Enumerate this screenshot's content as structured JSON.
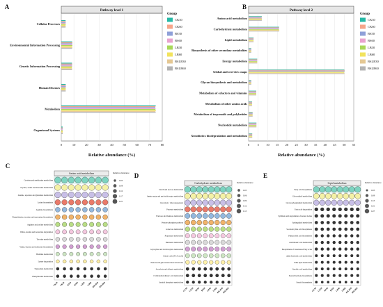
{
  "colors": {
    "CK30": "#26b9a6",
    "CK60": "#f6a58a",
    "BS30": "#8fa0d8",
    "BS60": "#e9a3cf",
    "LB30": "#a9d85a",
    "LB60": "#f2e35d",
    "BSLB30": "#e5c894",
    "BSLB60": "#b3b3b3"
  },
  "groups": [
    "CK30",
    "CK60",
    "BS30",
    "BS60",
    "LB30",
    "LB60",
    "BSLB30",
    "BSLB60"
  ],
  "legend_title": "Group",
  "chart_data": [
    {
      "type": "bar",
      "orientation": "horizontal",
      "panel": "A",
      "title": "Pathway level 1",
      "xlabel": "Relative abundance (%)",
      "xlim": [
        0,
        80
      ],
      "xticks": [
        0,
        10,
        20,
        30,
        40,
        50,
        60,
        70,
        80
      ],
      "categories": [
        "Cellular Processes",
        "Environmental Information Processing",
        "Genetic Information Processing",
        "Human Diseases",
        "Metabolism",
        "Organismal Systems"
      ],
      "series": [
        {
          "name": "CK30",
          "values": [
            3.4,
            8.6,
            8.5,
            3.5,
            74.8,
            1.1
          ]
        },
        {
          "name": "CK60",
          "values": [
            3.5,
            8.8,
            8.6,
            3.5,
            74.6,
            1.1
          ]
        },
        {
          "name": "BS30",
          "values": [
            3.5,
            8.7,
            8.6,
            3.6,
            74.5,
            1.1
          ]
        },
        {
          "name": "BS60",
          "values": [
            3.4,
            8.7,
            8.5,
            3.5,
            74.7,
            1.1
          ]
        },
        {
          "name": "LB30",
          "values": [
            3.5,
            8.8,
            8.6,
            3.5,
            74.6,
            1.1
          ]
        },
        {
          "name": "LB60",
          "values": [
            3.4,
            8.6,
            8.4,
            3.5,
            75.0,
            1.1
          ]
        },
        {
          "name": "BSLB30",
          "values": [
            3.5,
            8.7,
            8.6,
            3.5,
            74.6,
            1.1
          ]
        },
        {
          "name": "BSLB60",
          "values": [
            3.4,
            8.6,
            8.5,
            3.5,
            74.8,
            1.1
          ]
        }
      ]
    },
    {
      "type": "bar",
      "orientation": "horizontal",
      "panel": "B",
      "title": "Pathway level 2",
      "xlabel": "Relative abundance (%)",
      "xlim": [
        0,
        55
      ],
      "xticks": [
        0,
        5,
        10,
        15,
        20,
        25,
        30,
        35,
        40,
        45,
        50,
        55
      ],
      "categories": [
        "Amino acid metabolism",
        "Carbohydrate metabolism",
        "Lipid metabolism",
        "Biosynthesis of other secondary metabolites",
        "Energy metabolism",
        "Global and overview maps",
        "Glycan biosynthesis and metabolism",
        "Metabolism of cofactors and vitamins",
        "Metabolism of other amino acids",
        "Metabolism of terpenoids and polyketides",
        "Nucleotide metabolism",
        "Xenobiotics biodegradation and metabolism"
      ],
      "series": [
        {
          "name": "CK30",
          "values": [
            6.9,
            16.0,
            2.6,
            1.4,
            4.5,
            50.1,
            1.4,
            4.0,
            1.8,
            2.1,
            4.1,
            1.9
          ]
        },
        {
          "name": "CK60",
          "values": [
            6.9,
            15.9,
            2.6,
            1.4,
            4.5,
            50.2,
            1.4,
            4.0,
            1.8,
            2.1,
            4.1,
            1.9
          ]
        },
        {
          "name": "BS30",
          "values": [
            6.8,
            15.8,
            2.6,
            1.4,
            4.5,
            50.3,
            1.4,
            4.0,
            1.8,
            2.1,
            4.1,
            1.9
          ]
        },
        {
          "name": "BS60",
          "values": [
            6.9,
            16.0,
            2.6,
            1.4,
            4.5,
            50.1,
            1.4,
            4.0,
            1.8,
            2.1,
            4.1,
            1.9
          ]
        },
        {
          "name": "LB30",
          "values": [
            6.9,
            15.9,
            2.6,
            1.4,
            4.5,
            50.2,
            1.4,
            4.0,
            1.8,
            2.1,
            4.1,
            1.9
          ]
        },
        {
          "name": "LB60",
          "values": [
            7.0,
            16.1,
            2.6,
            1.4,
            4.5,
            50.0,
            1.4,
            4.0,
            1.8,
            2.1,
            4.1,
            1.9
          ]
        },
        {
          "name": "BSLB30",
          "values": [
            6.9,
            15.9,
            2.6,
            1.4,
            4.5,
            50.2,
            1.4,
            4.0,
            1.8,
            2.1,
            4.1,
            1.9
          ]
        },
        {
          "name": "BSLB60",
          "values": [
            6.9,
            16.0,
            2.6,
            1.4,
            4.5,
            50.1,
            1.4,
            4.0,
            1.8,
            2.1,
            4.1,
            1.9
          ]
        }
      ]
    },
    {
      "type": "bubble",
      "panel": "C",
      "title": "Amino acid metabolism",
      "size_legend_title": "Relative abundance",
      "size_legend": [
        "0.03",
        "0.08",
        "0.12",
        "0.17",
        "0.21"
      ],
      "x": [
        "CK30",
        "CK60",
        "BS30",
        "BS60",
        "LB30",
        "LB60",
        "BSLB30",
        "BSLB60"
      ],
      "rows": [
        {
          "name": "Cysteine and methionine metabolism",
          "value": 0.21,
          "fill": "#7dd3c0",
          "highlight": true
        },
        {
          "name": "Glycine, serine and threonine metabolism",
          "value": 0.19,
          "fill": "#f4f1a6"
        },
        {
          "name": "Alanine, aspartate and glutamate metabolism",
          "value": 0.19,
          "fill": "#c8bfe7"
        },
        {
          "name": "Lysine biosynthesis",
          "value": 0.15,
          "fill": "#e97a6a"
        },
        {
          "name": "Arginine biosynthesis",
          "value": 0.11,
          "fill": "#93b8de"
        },
        {
          "name": "Phenylalanine, tyrosine and tryptophan biosynthesis",
          "value": 0.11,
          "fill": "#f0b36a"
        },
        {
          "name": "Arginine and proline metabolism",
          "value": 0.09,
          "fill": "#b9de85"
        },
        {
          "name": "Valine, leucine and isoleucine degradation",
          "value": 0.08,
          "fill": "#f5c9e0"
        },
        {
          "name": "Tyrosine metabolism",
          "value": 0.07,
          "fill": "#d9d9d9"
        },
        {
          "name": "Valine, leucine and isoleucine biosynthesis",
          "value": 0.06,
          "fill": "#d19fd1"
        },
        {
          "name": "Histidine metabolism",
          "value": 0.05,
          "fill": "#cde6c3"
        },
        {
          "name": "Lysine degradation",
          "value": 0.04,
          "fill": "#fff0a8"
        },
        {
          "name": "Tryptophan metabolism",
          "value": 0.03,
          "fill": "#333333"
        },
        {
          "name": "Phenylalanine metabolism",
          "value": 0.03,
          "fill": "#333333"
        }
      ]
    },
    {
      "type": "bubble",
      "panel": "D",
      "title": "Carbohydrate metabolism",
      "size_legend_title": "Relative abundance",
      "size_legend": [
        "0.03",
        "0.06",
        "0.09",
        "0.12",
        "0.15"
      ],
      "x": [
        "CK30",
        "CK60",
        "BS30",
        "BS60",
        "LB30",
        "LB60",
        "BSLB30",
        "BSLB60"
      ],
      "rows": [
        {
          "name": "Starch and sucrose metabolism",
          "value": 0.15,
          "fill": "#7dd3c0",
          "highlight": true
        },
        {
          "name": "Amino sugar and nucleotide sugar metabolism",
          "value": 0.14,
          "fill": "#f4f1a6"
        },
        {
          "name": "Glycolysis / Gluconeogenesis",
          "value": 0.13,
          "fill": "#c8bfe7"
        },
        {
          "name": "Pyruvate metabolism",
          "value": 0.12,
          "fill": "#e97a6a"
        },
        {
          "name": "Fructose and mannose metabolism",
          "value": 0.1,
          "fill": "#93b8de"
        },
        {
          "name": "Pentose phosphate pathway",
          "value": 0.09,
          "fill": "#f0b36a"
        },
        {
          "name": "Galactose metabolism",
          "value": 0.08,
          "fill": "#b9de85"
        },
        {
          "name": "Propanoate metabolism",
          "value": 0.07,
          "fill": "#f5c9e0"
        },
        {
          "name": "Butanoate metabolism",
          "value": 0.07,
          "fill": "#d9d9d9"
        },
        {
          "name": "Glyoxylate and dicarboxylate metabolism",
          "value": 0.07,
          "fill": "#d19fd1"
        },
        {
          "name": "Citrate cycle (TCA cycle)",
          "value": 0.06,
          "fill": "#cde6c3"
        },
        {
          "name": "Pentose and glucuronate interconversions",
          "value": 0.05,
          "fill": "#fff0a8"
        },
        {
          "name": "Ascorbate and aldarate metabolism",
          "value": 0.03,
          "fill": "#333333"
        },
        {
          "name": "C5-Branched dibasic acid metabolism",
          "value": 0.03,
          "fill": "#333333"
        },
        {
          "name": "Inositol phosphate metabolism",
          "value": 0.02,
          "fill": "#333333"
        }
      ]
    },
    {
      "type": "bubble",
      "panel": "E",
      "title": "Lipid metabolism",
      "size_legend_title": "Relative abundance",
      "size_legend": [
        "0.03",
        "0.09",
        "0.15",
        "0.21",
        "0.27"
      ],
      "x": [
        "CK30",
        "CK60",
        "BS30",
        "BS60",
        "LB30",
        "LB60",
        "BSLB30",
        "BSLB60"
      ],
      "rows": [
        {
          "name": "Fatty acid biosynthesis",
          "value": 0.27,
          "fill": "#7dd3c0",
          "highlight": true
        },
        {
          "name": "Glycerolipid metabolism",
          "value": 0.24,
          "fill": "#f4f1a6"
        },
        {
          "name": "Glycerophospholipid metabolism",
          "value": 0.22,
          "fill": "#c8bfe7"
        },
        {
          "name": "Fatty acid degradation",
          "value": 0.07,
          "fill": "#333333"
        },
        {
          "name": "Synthesis and degradation of ketone bodies",
          "value": 0.06,
          "fill": "#333333"
        },
        {
          "name": "Sphingolipid metabolism",
          "value": 0.05,
          "fill": "#333333"
        },
        {
          "name": "Secondary bile acid biosynthesis",
          "value": 0.05,
          "fill": "#333333"
        },
        {
          "name": "Primary bile acid biosynthesis",
          "value": 0.04,
          "fill": "#333333"
        },
        {
          "name": "Arachidonic acid metabolism",
          "value": 0.04,
          "fill": "#333333"
        },
        {
          "name": "Biosynthesis of unsaturated fatty acids",
          "value": 0.04,
          "fill": "#333333"
        },
        {
          "name": "alpha-Linolenic acid metabolism",
          "value": 0.03,
          "fill": "#333333"
        },
        {
          "name": "Ether lipid metabolism",
          "value": 0.03,
          "fill": "#333333"
        },
        {
          "name": "Linoleic acid metabolism",
          "value": 0.03,
          "fill": "#333333"
        },
        {
          "name": "Steroid hormone biosynthesis",
          "value": 0.03,
          "fill": "#333333"
        },
        {
          "name": "Steroid biosynthesis",
          "value": 0.02,
          "fill": "#333333"
        }
      ]
    }
  ]
}
